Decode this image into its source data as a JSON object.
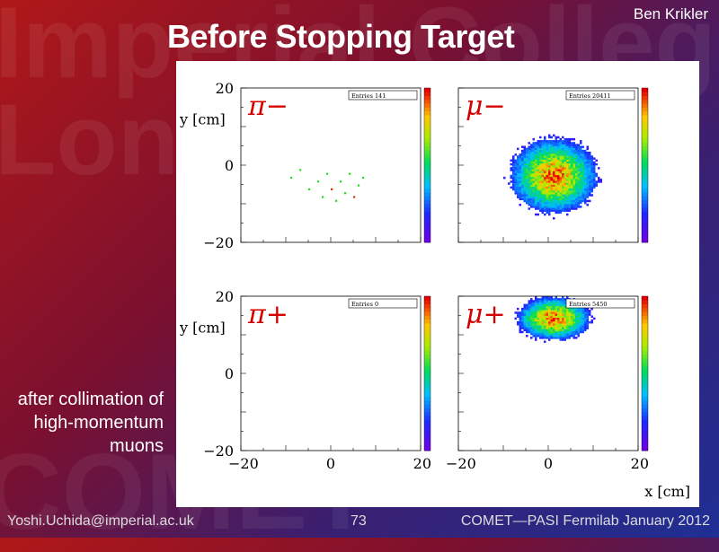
{
  "slide": {
    "title": "Before Stopping Target",
    "author": "Ben Krikler",
    "caption": "after collimation of high-momentum muons",
    "footer_left": "Yoshi.Uchida@imperial.ac.uk",
    "footer_center": "73",
    "footer_right": "COMET—PASI Fermilab January 2012",
    "watermark_lines": [
      "Imperial Colleg",
      "Lon",
      "COMET"
    ]
  },
  "chart_data": [
    {
      "type": "heatmap",
      "label": "π−",
      "stats_text": "Entries   141",
      "axis": {
        "ylabel": "y [cm]",
        "xlim": [
          -20,
          20
        ],
        "ylim": [
          -20,
          20
        ]
      },
      "density": "sparse",
      "points": [
        [
          -9,
          -3
        ],
        [
          -7,
          -1
        ],
        [
          -3,
          -4
        ],
        [
          0,
          -6
        ],
        [
          2,
          -4
        ],
        [
          4,
          -2
        ],
        [
          6,
          -5
        ],
        [
          -2,
          -8
        ],
        [
          1,
          -9
        ],
        [
          5,
          -8
        ],
        [
          -5,
          -6
        ],
        [
          3,
          -7
        ],
        [
          7,
          -3
        ],
        [
          -1,
          -2
        ]
      ]
    },
    {
      "type": "heatmap",
      "label": "μ−",
      "stats_text": "Entries  20411",
      "axis": {
        "xlim": [
          -20,
          20
        ],
        "ylim": [
          -20,
          20
        ]
      },
      "center": [
        1,
        -3
      ],
      "radius_x": 9.5,
      "radius_y": 9.5
    },
    {
      "type": "heatmap",
      "label": "π+",
      "stats_text": "Entries      0",
      "axis": {
        "ylabel": "y [cm]",
        "xlim": [
          -20,
          20
        ],
        "ylim": [
          -20,
          20
        ],
        "xticks": [
          -20,
          0,
          20
        ]
      }
    },
    {
      "type": "heatmap",
      "label": "μ+",
      "stats_text": "Entries   5450",
      "axis": {
        "xlabel": "x [cm]",
        "xlim": [
          -20,
          20
        ],
        "ylim": [
          -20,
          20
        ],
        "xticks": [
          -20,
          0,
          20
        ]
      },
      "center": [
        1,
        14
      ],
      "radius_x": 8,
      "radius_y": 5.5
    }
  ]
}
